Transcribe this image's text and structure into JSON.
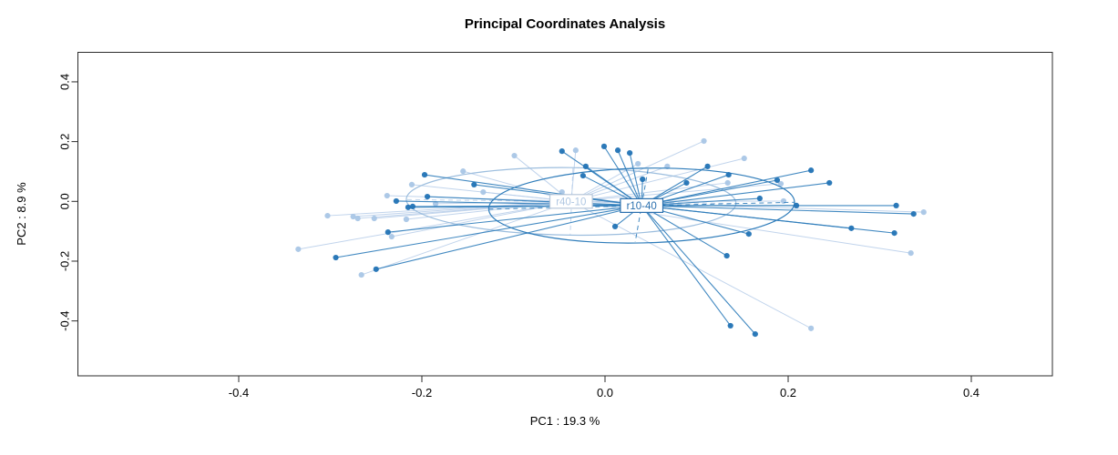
{
  "window_title": "Principal Coordinates Analysis",
  "chart_data": {
    "type": "scatter",
    "subtype": "pcoa-spider-ellipse",
    "title": "Principal Coordinates Analysis",
    "xlabel": "PC1 : 19.3 %",
    "ylabel": "PC2 : 8.9 %",
    "xlim": [
      -0.576,
      0.489
    ],
    "ylim": [
      -0.584,
      0.5
    ],
    "grid": false,
    "legend_position": "none",
    "x_ticks": [
      -0.4,
      -0.2,
      0.0,
      0.2,
      0.4
    ],
    "x_tick_labels": [
      "-0.4",
      "-0.2",
      "0.0",
      "0.2",
      "0.4"
    ],
    "y_ticks": [
      -0.4,
      -0.2,
      0.0,
      0.2,
      0.4
    ],
    "y_tick_labels": [
      "-0.4",
      "-0.2",
      "0.0",
      "0.2",
      "0.4"
    ],
    "groups": [
      {
        "name": "r40-10",
        "label": "r40-10",
        "point_color": "#a9c6e6",
        "line_color": "#b6cde9",
        "line_opacity": 0.85,
        "line_width": 1.0,
        "ellipse_color": "#9dbede",
        "label_color": "#b0c7e2",
        "label_border": "#b7c7da",
        "centroid": [
          -0.037,
          0.0
        ],
        "ellipse": {
          "rx": 0.18,
          "ry": 0.113,
          "rot": 0.7
        },
        "ellipse_axes": [
          [
            [
              -0.216,
              0.006
            ],
            [
              0.143,
              -0.007
            ]
          ],
          [
            [
              -0.035,
              0.111
            ],
            [
              -0.038,
              -0.112
            ]
          ]
        ],
        "points": [
          [
            -0.335,
            -0.16
          ],
          [
            -0.303,
            -0.048
          ],
          [
            -0.275,
            -0.051
          ],
          [
            -0.27,
            -0.057
          ],
          [
            -0.266,
            -0.246
          ],
          [
            -0.252,
            -0.057
          ],
          [
            -0.238,
            0.019
          ],
          [
            -0.233,
            -0.118
          ],
          [
            -0.217,
            -0.06
          ],
          [
            -0.211,
            0.056
          ],
          [
            -0.185,
            -0.008
          ],
          [
            -0.155,
            0.101
          ],
          [
            -0.133,
            0.031
          ],
          [
            -0.099,
            0.153
          ],
          [
            -0.047,
            0.031
          ],
          [
            -0.032,
            0.171
          ],
          [
            0.036,
            0.126
          ],
          [
            0.068,
            0.117
          ],
          [
            0.108,
            0.202
          ],
          [
            0.134,
            0.062
          ],
          [
            0.152,
            0.144
          ],
          [
            0.192,
            0.059
          ],
          [
            0.195,
            0.001
          ],
          [
            0.225,
            -0.425
          ],
          [
            0.334,
            -0.173
          ],
          [
            0.348,
            -0.036
          ]
        ]
      },
      {
        "name": "r10-40",
        "label": "r10-40",
        "point_color": "#2273b5",
        "line_color": "#2e7cba",
        "line_opacity": 0.9,
        "line_width": 1.1,
        "ellipse_color": "#2e7cba",
        "label_color": "#2a6fae",
        "label_border": "#2a6fae",
        "centroid": [
          0.04,
          -0.014
        ],
        "ellipse": {
          "rx": 0.167,
          "ry": 0.125,
          "rot": -1.3
        },
        "ellipse_axes": [
          [
            [
              -0.127,
              -0.026
            ],
            [
              0.207,
              -0.003
            ]
          ],
          [
            [
              0.047,
              0.108
            ],
            [
              0.033,
              -0.136
            ]
          ]
        ],
        "points": [
          [
            -0.294,
            -0.188
          ],
          [
            -0.25,
            -0.227
          ],
          [
            -0.237,
            -0.103
          ],
          [
            -0.228,
            0.001
          ],
          [
            -0.215,
            -0.02
          ],
          [
            -0.21,
            -0.017
          ],
          [
            -0.197,
            0.089
          ],
          [
            -0.194,
            0.016
          ],
          [
            -0.143,
            0.056
          ],
          [
            -0.047,
            0.168
          ],
          [
            -0.024,
            0.086
          ],
          [
            -0.021,
            0.117
          ],
          [
            -0.001,
            0.184
          ],
          [
            0.014,
            0.171
          ],
          [
            0.027,
            0.162
          ],
          [
            0.041,
            0.074
          ],
          [
            0.089,
            0.062
          ],
          [
            0.112,
            0.117
          ],
          [
            0.135,
            0.089
          ],
          [
            0.011,
            -0.084
          ],
          [
            0.133,
            -0.182
          ],
          [
            0.137,
            -0.416
          ],
          [
            0.164,
            -0.444
          ],
          [
            0.169,
            0.01
          ],
          [
            0.188,
            0.071
          ],
          [
            0.209,
            -0.014
          ],
          [
            0.225,
            0.104
          ],
          [
            0.245,
            0.062
          ],
          [
            0.269,
            -0.09
          ],
          [
            0.316,
            -0.106
          ],
          [
            0.318,
            -0.014
          ],
          [
            0.337,
            -0.042
          ],
          [
            0.157,
            -0.109
          ]
        ]
      }
    ]
  }
}
